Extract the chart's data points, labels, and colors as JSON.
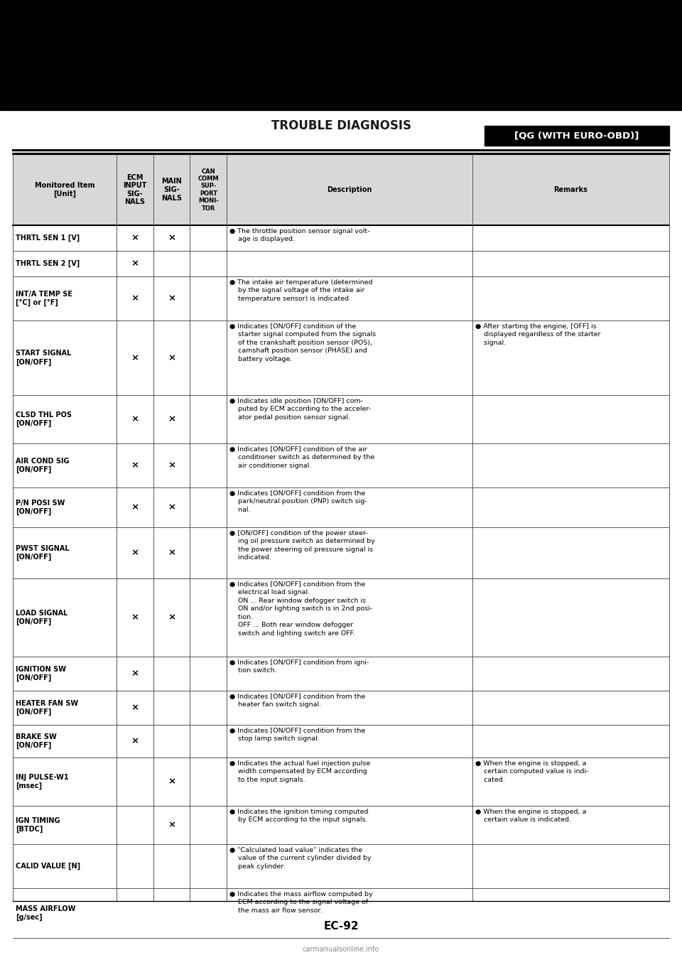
{
  "title_top": "TROUBLE DIAGNOSIS",
  "title_right": "[QG (WITH EURO-OBD)]",
  "page_num": "EC-92",
  "bg_color": "#ffffff",
  "rows": [
    {
      "item": "THRTL SEN 1 [V]",
      "ecm": "x",
      "main": "x",
      "can": "",
      "description": "● The throttle position sensor signal volt-\n    age is displayed.",
      "remarks": "",
      "desc_shared_next": true
    },
    {
      "item": "THRTL SEN 2 [V]",
      "ecm": "x",
      "main": "",
      "can": "",
      "description": "",
      "remarks": "",
      "desc_shared_next": false
    },
    {
      "item": "INT/A TEMP SE\n[°C] or [°F]",
      "ecm": "x",
      "main": "x",
      "can": "",
      "description": "● The intake air temperature (determined\n    by the signal voltage of the intake air\n    temperature sensor) is indicated.",
      "remarks": ""
    },
    {
      "item": "START SIGNAL\n[ON/OFF]",
      "ecm": "x",
      "main": "x",
      "can": "",
      "description": "● Indicates [ON/OFF] condition of the\n    starter signal computed from the signals\n    of the crankshaft position sensor (POS),\n    camshaft position sensor (PHASE) and\n    battery voltage.",
      "remarks": "● After starting the engine, [OFF] is\n    displayed regardless of the starter\n    signal."
    },
    {
      "item": "CLSD THL POS\n[ON/OFF]",
      "ecm": "x",
      "main": "x",
      "can": "",
      "description": "● Indicates idle position [ON/OFF] com-\n    puted by ECM according to the acceler-\n    ator pedal position sensor signal.",
      "remarks": ""
    },
    {
      "item": "AIR COND SIG\n[ON/OFF]",
      "ecm": "x",
      "main": "x",
      "can": "",
      "description": "● Indicates [ON/OFF] condition of the air\n    conditioner switch as determined by the\n    air conditioner signal.",
      "remarks": ""
    },
    {
      "item": "P/N POSI SW\n[ON/OFF]",
      "ecm": "x",
      "main": "x",
      "can": "",
      "description": "● Indicates [ON/OFF] condition from the\n    park/neutral position (PNP) switch sig-\n    nal.",
      "remarks": ""
    },
    {
      "item": "PWST SIGNAL\n[ON/OFF]",
      "ecm": "x",
      "main": "x",
      "can": "",
      "description": "● [ON/OFF] condition of the power steer-\n    ing oil pressure switch as determined by\n    the power steering oil pressure signal is\n    indicated.",
      "remarks": ""
    },
    {
      "item": "LOAD SIGNAL\n[ON/OFF]",
      "ecm": "x",
      "main": "x",
      "can": "",
      "description": "● Indicates [ON/OFF] condition from the\n    electrical load signal.\n    ON ... Rear window defogger switch is\n    ON and/or lighting switch is in 2nd posi-\n    tion.\n    OFF ... Both rear window defogger\n    switch and lighting switch are OFF.",
      "remarks": ""
    },
    {
      "item": "IGNITION SW\n[ON/OFF]",
      "ecm": "x",
      "main": "",
      "can": "",
      "description": "● Indicates [ON/OFF] condition from igni-\n    tion switch.",
      "remarks": ""
    },
    {
      "item": "HEATER FAN SW\n[ON/OFF]",
      "ecm": "x",
      "main": "",
      "can": "",
      "description": "● Indicates [ON/OFF] condition from the\n    heater fan switch signal.",
      "remarks": ""
    },
    {
      "item": "BRAKE SW\n[ON/OFF]",
      "ecm": "x",
      "main": "",
      "can": "",
      "description": "● Indicates [ON/OFF] condition from the\n    stop lamp switch signal.",
      "remarks": ""
    },
    {
      "item": "INJ PULSE-W1\n[msec]",
      "ecm": "",
      "main": "x",
      "can": "",
      "description": "● Indicates the actual fuel injection pulse\n    width compensated by ECM according\n    to the input signals.",
      "remarks": "● When the engine is stopped, a\n    certain computed value is indi-\n    cated."
    },
    {
      "item": "IGN TIMING\n[BTDC]",
      "ecm": "",
      "main": "x",
      "can": "",
      "description": "● Indicates the ignition timing computed\n    by ECM according to the input signals.",
      "remarks": "● When the engine is stopped, a\n    certain value is indicated."
    },
    {
      "item": "CALID VALUE [N]",
      "ecm": "",
      "main": "",
      "can": "",
      "description": "● \"Calculated load value\" indicates the\n    value of the current cylinder divided by\n    peak cylinder.",
      "remarks": ""
    },
    {
      "item": "MASS AIRFLOW\n[g/sec]",
      "ecm": "",
      "main": "",
      "can": "",
      "description": "● Indicates the mass airflow computed by\n    ECM according to the signal voltage of\n    the mass air flow sensor.",
      "remarks": ""
    }
  ]
}
